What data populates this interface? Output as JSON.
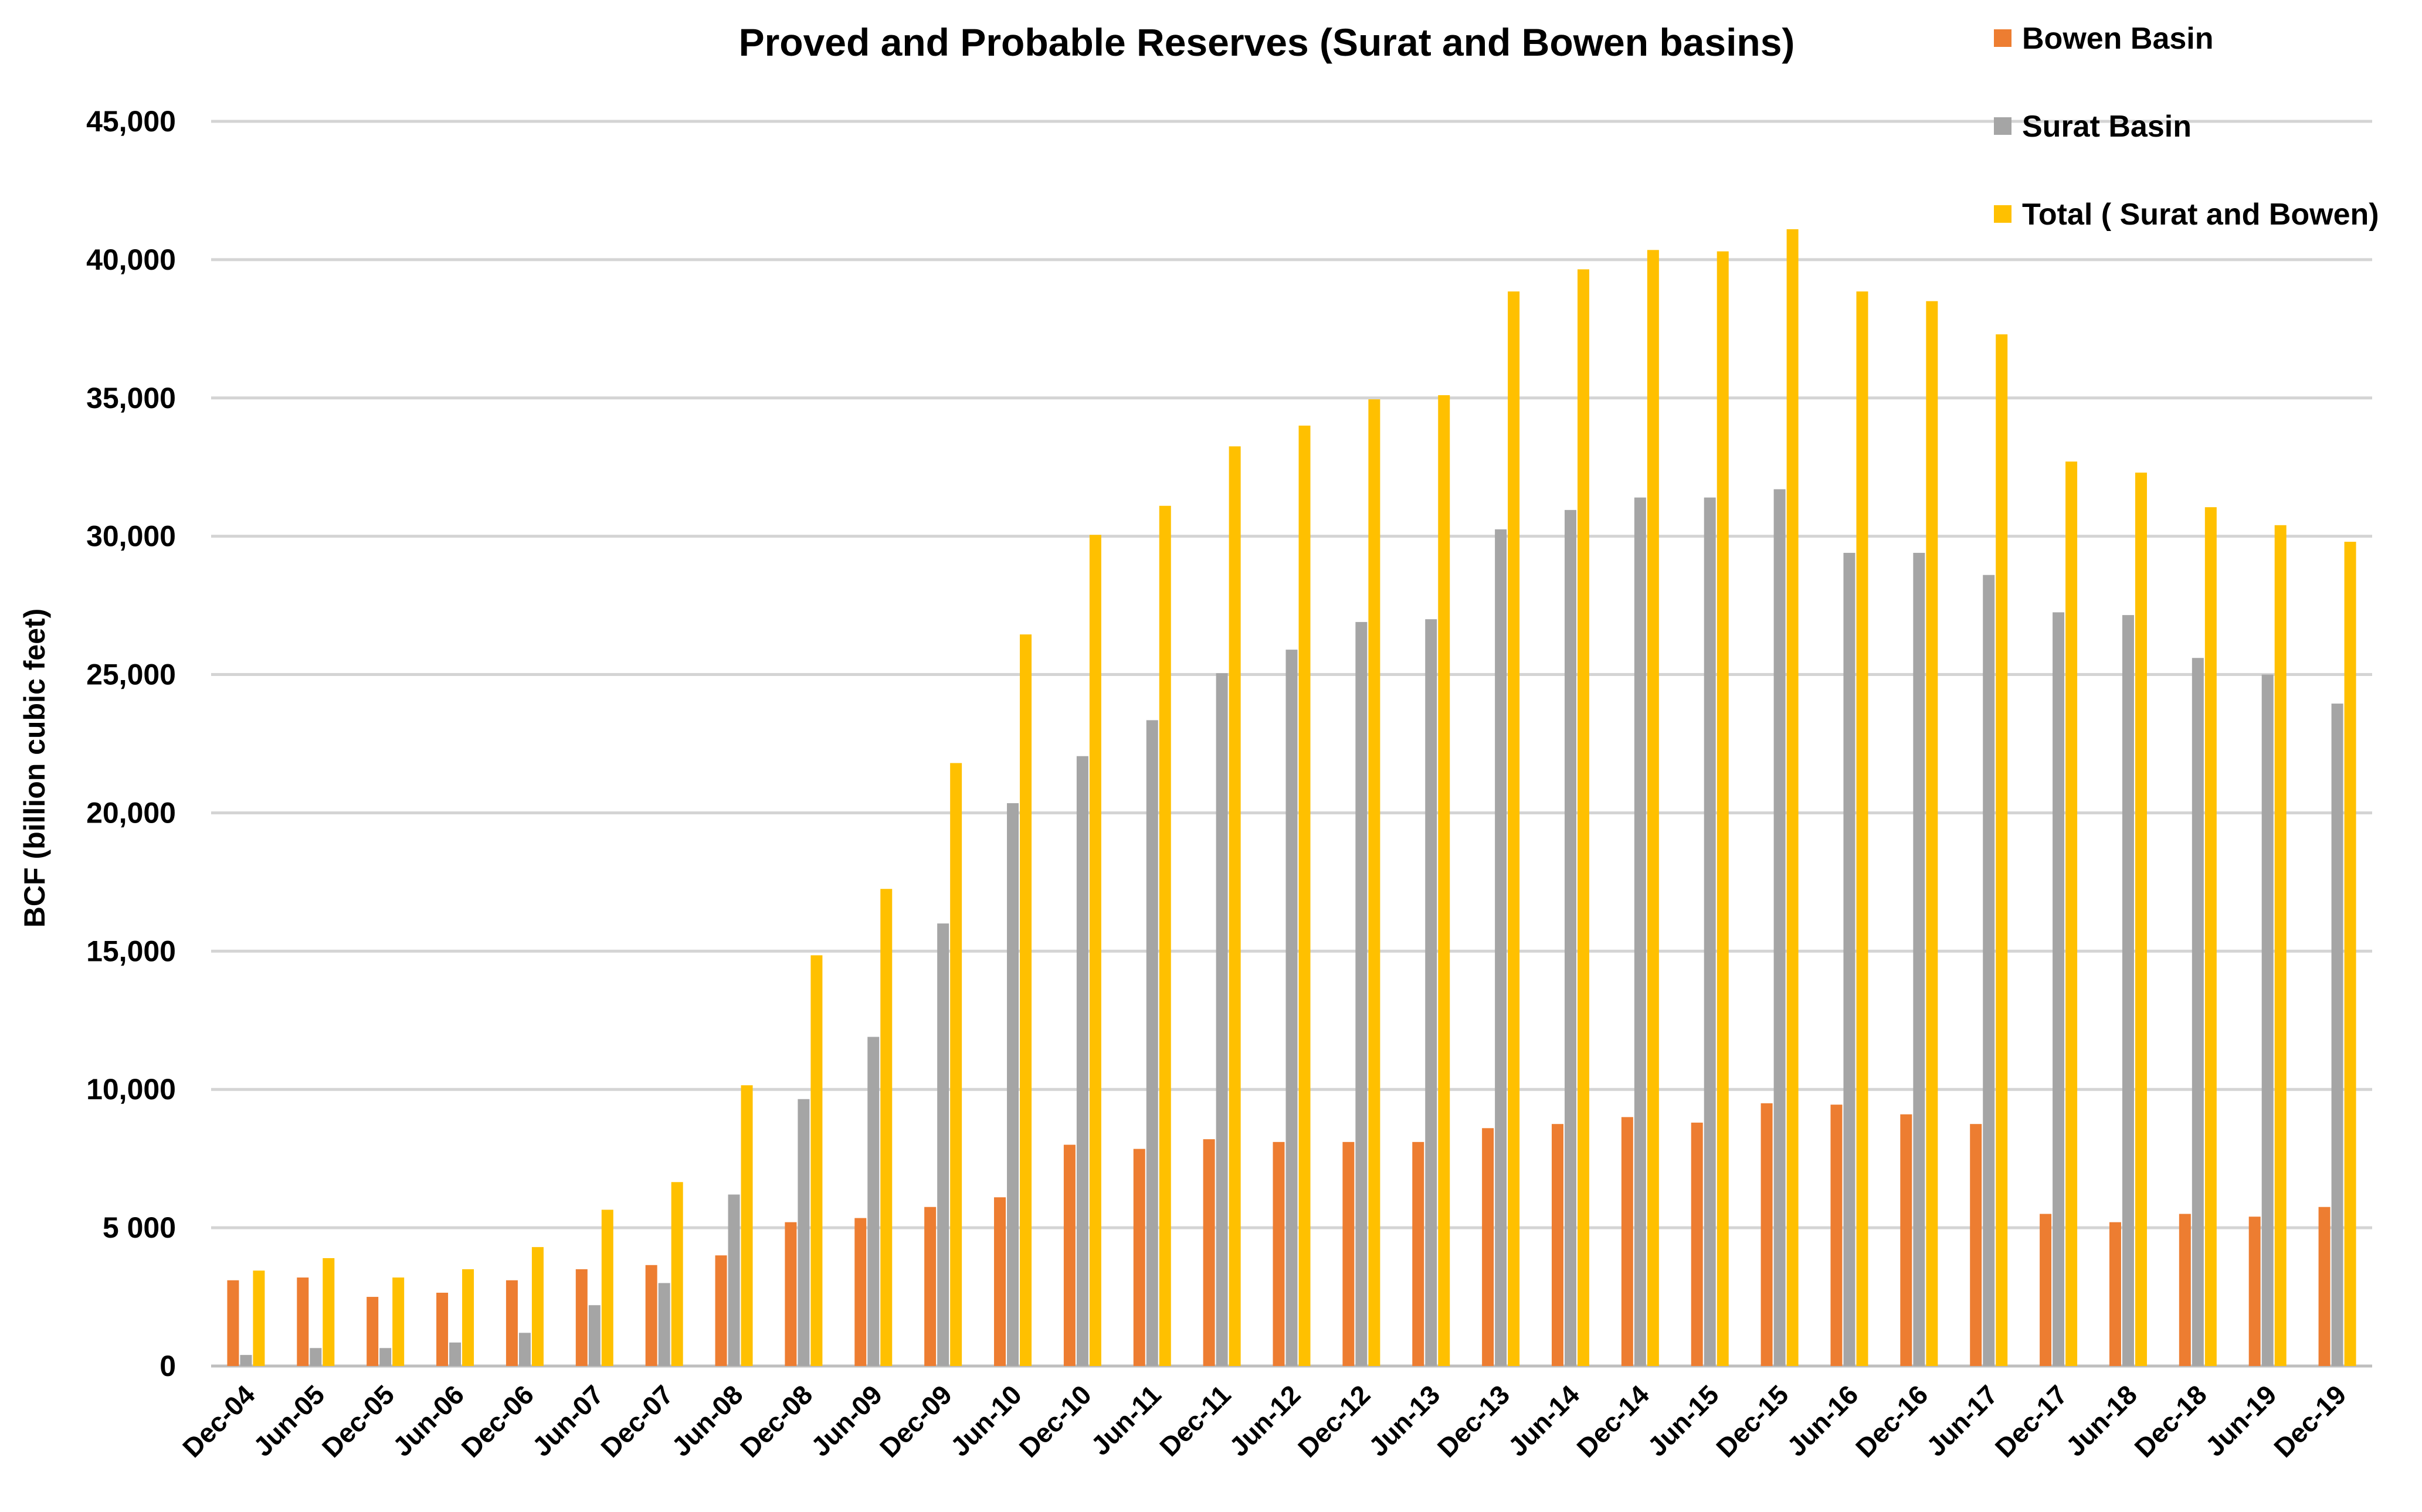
{
  "chart_data": {
    "type": "bar",
    "title": "Proved and Probable Reserves (Surat and Bowen basins)",
    "xlabel": "",
    "ylabel": "BCF (billion cubic feet)",
    "ylim": [
      0,
      45000
    ],
    "yticks": [
      0,
      5000,
      10000,
      15000,
      20000,
      25000,
      30000,
      35000,
      40000,
      45000
    ],
    "ytick_labels": [
      "0",
      "5 000",
      "10,000",
      "15,000",
      "20,000",
      "25,000",
      "30,000",
      "35,000",
      "40,000",
      "45,000"
    ],
    "grid": true,
    "legend_position": "top-right",
    "categories": [
      "Dec-04",
      "Jun-05",
      "Dec-05",
      "Jun-06",
      "Dec-06",
      "Jun-07",
      "Dec-07",
      "Jun-08",
      "Dec-08",
      "Jun-09",
      "Dec-09",
      "Jun-10",
      "Dec-10",
      "Jun-11",
      "Dec-11",
      "Jun-12",
      "Dec-12",
      "Jun-13",
      "Dec-13",
      "Jun-14",
      "Dec-14",
      "Jun-15",
      "Dec-15",
      "Jun-16",
      "Dec-16",
      "Jun-17",
      "Dec-17",
      "Jun-18",
      "Dec-18",
      "Jun-19",
      "Dec-19"
    ],
    "series": [
      {
        "name": "Bowen Basin",
        "color": "#ed7d31",
        "values": [
          3100,
          3200,
          2500,
          2650,
          3100,
          3500,
          3650,
          4000,
          5200,
          5350,
          5750,
          6100,
          8000,
          7850,
          8200,
          8100,
          8100,
          8100,
          8600,
          8750,
          9000,
          8800,
          9500,
          9450,
          9100,
          8750,
          5500,
          5200,
          5500,
          5400,
          5750
        ]
      },
      {
        "name": "Surat Basin",
        "color": "#a5a5a5",
        "values": [
          400,
          650,
          650,
          850,
          1200,
          2200,
          3000,
          6200,
          9650,
          11900,
          16000,
          20350,
          22050,
          23350,
          25050,
          25900,
          26900,
          27000,
          30250,
          30950,
          31400,
          31400,
          31700,
          29400,
          29400,
          28600,
          27250,
          27150,
          25600,
          25000,
          23950
        ]
      },
      {
        "name": "Total ( Surat and Bowen)",
        "color": "#ffc000",
        "values": [
          3450,
          3900,
          3200,
          3500,
          4300,
          5650,
          6650,
          10150,
          14850,
          17250,
          21800,
          26450,
          30050,
          31100,
          33250,
          34000,
          34950,
          35100,
          38850,
          39650,
          40350,
          40300,
          41100,
          38850,
          38500,
          37300,
          32700,
          32300,
          31050,
          30400,
          29800
        ]
      }
    ]
  }
}
